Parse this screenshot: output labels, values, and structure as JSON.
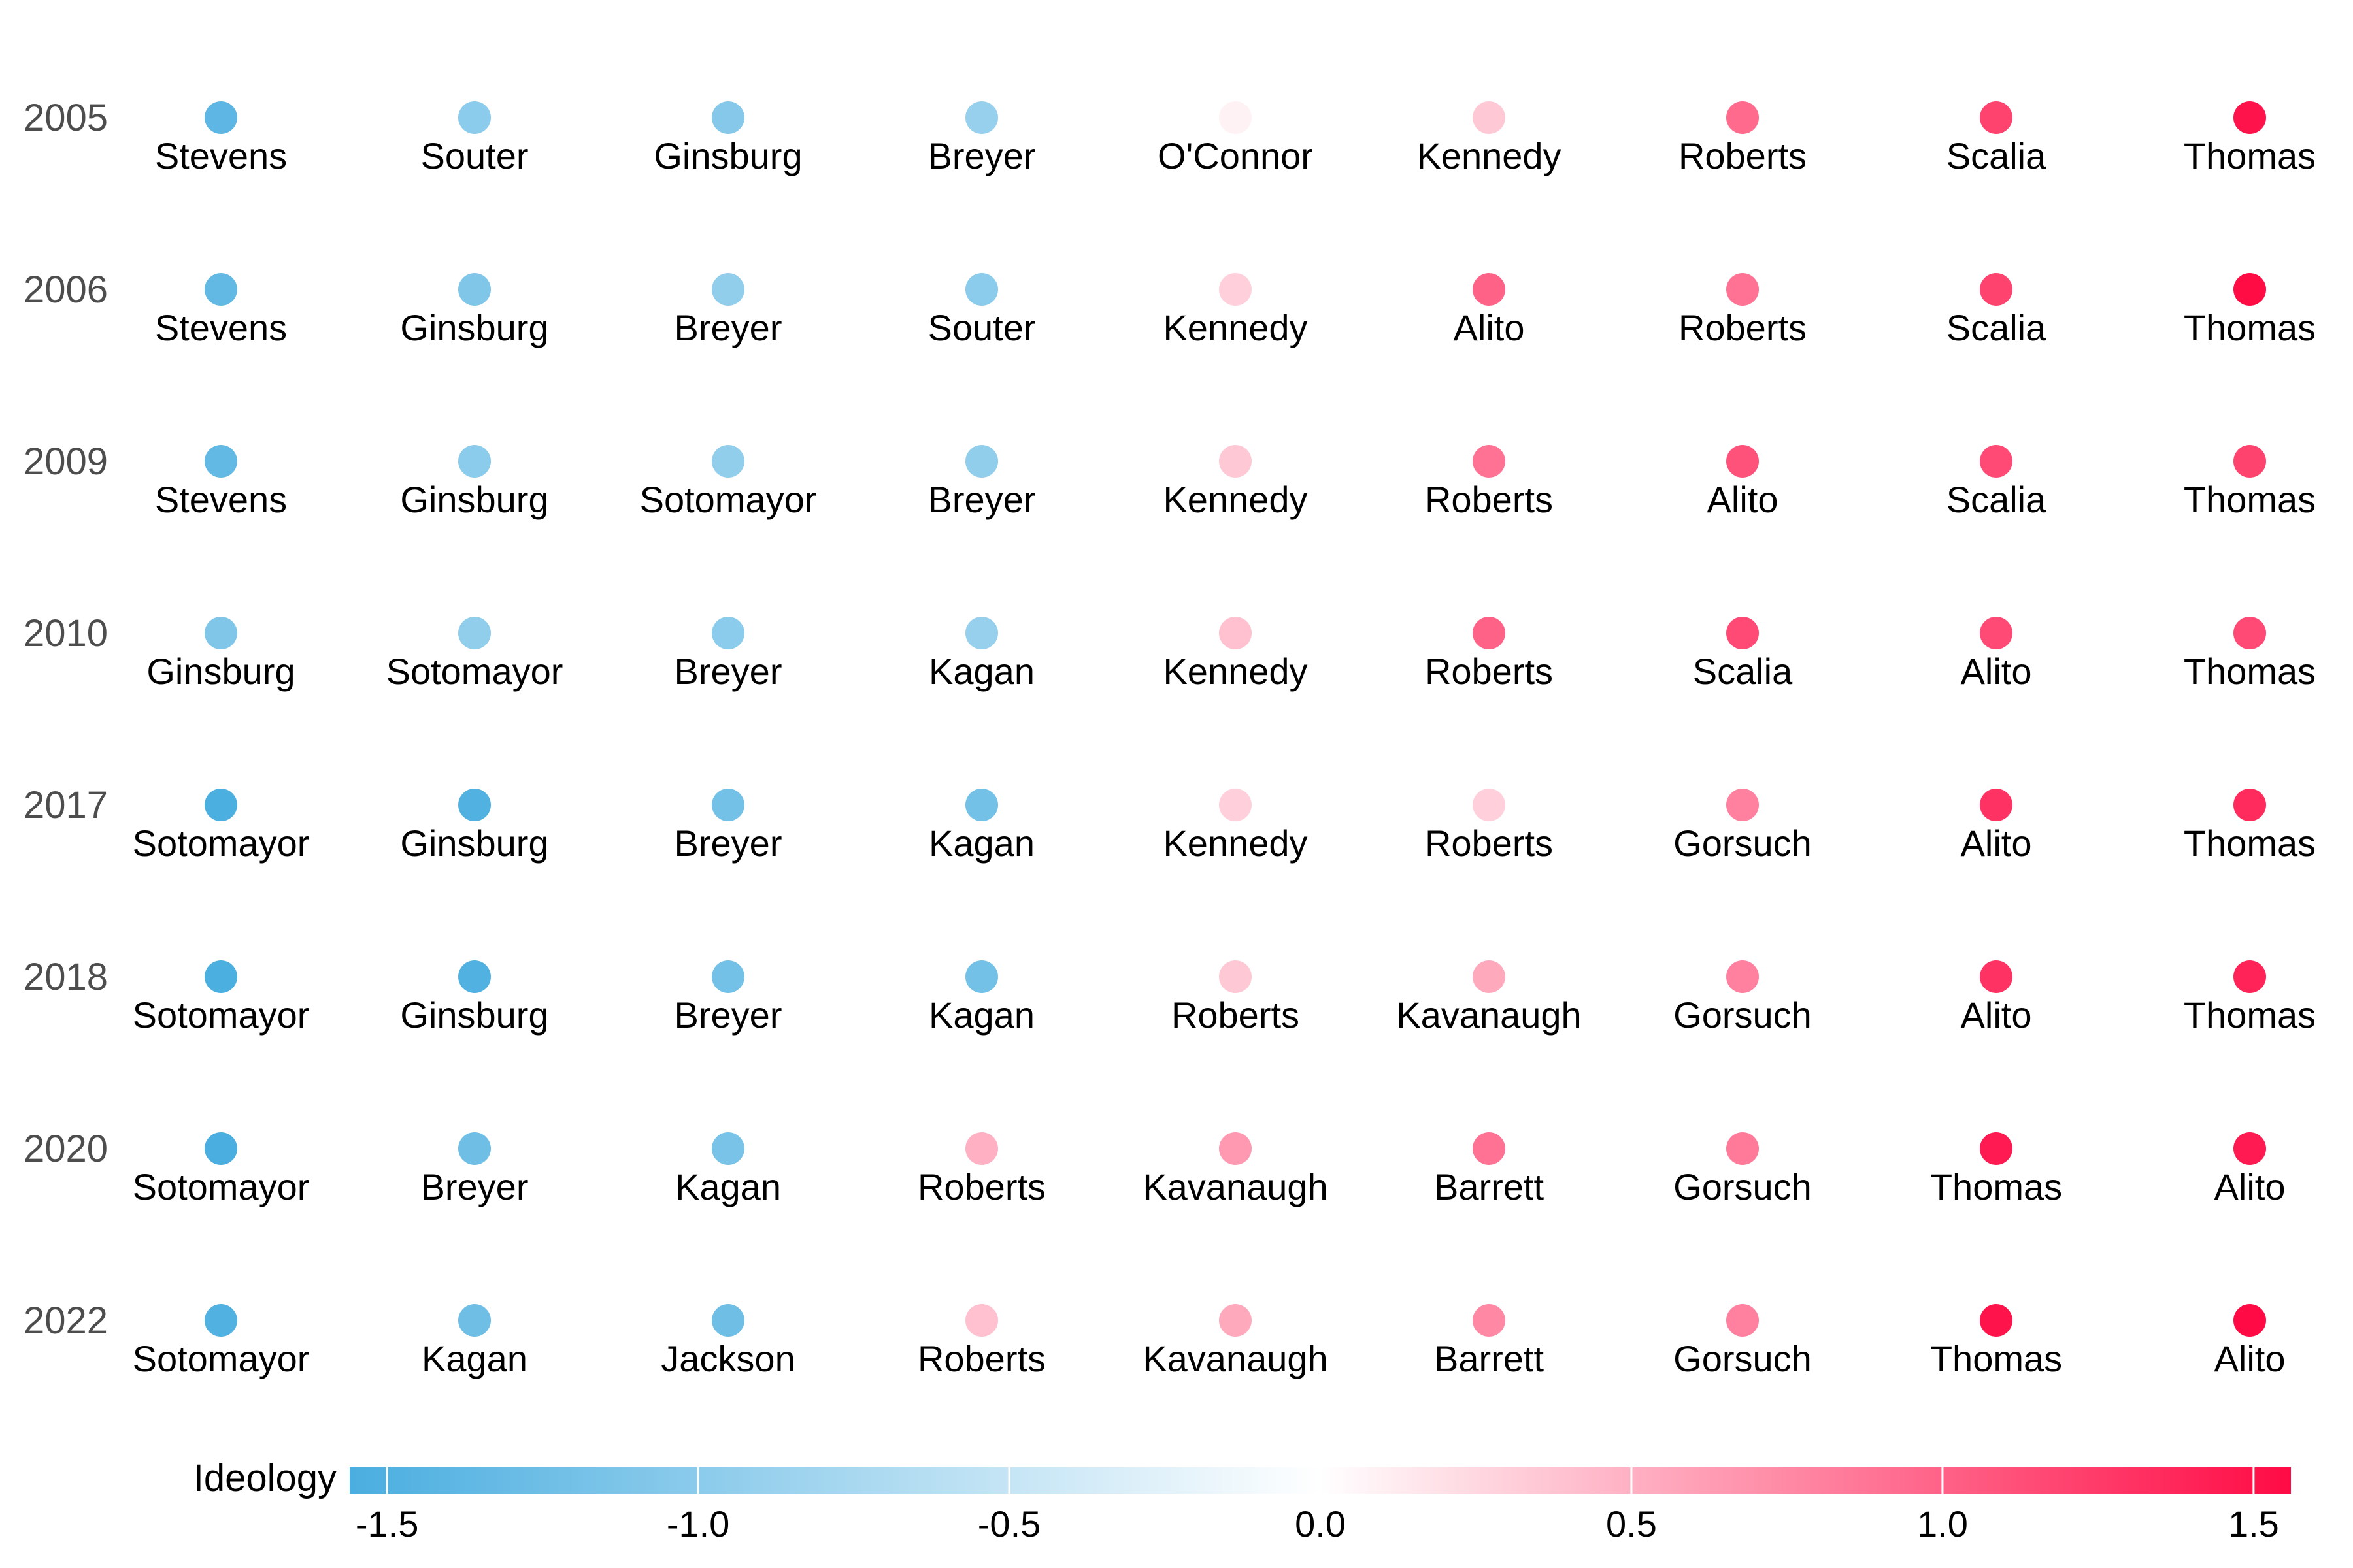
{
  "chart_data": {
    "type": "scatter",
    "title": "",
    "xlabel": "",
    "ylabel": "",
    "grid": false,
    "legend": {
      "title": "Ideology",
      "placement": "bottom",
      "range": [
        -1.56,
        1.56
      ],
      "ticks": [
        -1.5,
        -1.0,
        -0.5,
        0.0,
        0.5,
        1.0,
        1.5
      ],
      "tick_labels": [
        "-1.5",
        "-1.0",
        "-0.5",
        "0.0",
        "0.5",
        "1.0",
        "1.5"
      ],
      "colors": {
        "low": "#4aaee0",
        "mid": "#ffffff",
        "high": "#ff0a44"
      }
    },
    "rows": [
      {
        "year": "2005",
        "justices": [
          {
            "name": "Stevens",
            "ideology": -1.4
          },
          {
            "name": "Souter",
            "ideology": -1.0
          },
          {
            "name": "Ginsburg",
            "ideology": -1.05
          },
          {
            "name": "Breyer",
            "ideology": -0.9
          },
          {
            "name": "O'Connor",
            "ideology": 0.08
          },
          {
            "name": "Kennedy",
            "ideology": 0.35
          },
          {
            "name": "Roberts",
            "ideology": 0.95
          },
          {
            "name": "Scalia",
            "ideology": 1.2
          },
          {
            "name": "Thomas",
            "ideology": 1.5
          }
        ]
      },
      {
        "year": "2006",
        "justices": [
          {
            "name": "Stevens",
            "ideology": -1.35
          },
          {
            "name": "Ginsburg",
            "ideology": -1.1
          },
          {
            "name": "Breyer",
            "ideology": -0.95
          },
          {
            "name": "Souter",
            "ideology": -1.0
          },
          {
            "name": "Kennedy",
            "ideology": 0.3
          },
          {
            "name": "Alito",
            "ideology": 1.0
          },
          {
            "name": "Roberts",
            "ideology": 0.9
          },
          {
            "name": "Scalia",
            "ideology": 1.2
          },
          {
            "name": "Thomas",
            "ideology": 1.55
          }
        ]
      },
      {
        "year": "2009",
        "justices": [
          {
            "name": "Stevens",
            "ideology": -1.35
          },
          {
            "name": "Ginsburg",
            "ideology": -1.0
          },
          {
            "name": "Sotomayor",
            "ideology": -0.95
          },
          {
            "name": "Breyer",
            "ideology": -0.95
          },
          {
            "name": "Kennedy",
            "ideology": 0.35
          },
          {
            "name": "Roberts",
            "ideology": 0.9
          },
          {
            "name": "Alito",
            "ideology": 1.1
          },
          {
            "name": "Scalia",
            "ideology": 1.15
          },
          {
            "name": "Thomas",
            "ideology": 1.2
          }
        ]
      },
      {
        "year": "2010",
        "justices": [
          {
            "name": "Ginsburg",
            "ideology": -1.1
          },
          {
            "name": "Sotomayor",
            "ideology": -0.95
          },
          {
            "name": "Breyer",
            "ideology": -1.0
          },
          {
            "name": "Kagan",
            "ideology": -0.9
          },
          {
            "name": "Kennedy",
            "ideology": 0.4
          },
          {
            "name": "Roberts",
            "ideology": 1.0
          },
          {
            "name": "Scalia",
            "ideology": 1.15
          },
          {
            "name": "Alito",
            "ideology": 1.15
          },
          {
            "name": "Thomas",
            "ideology": 1.15
          }
        ]
      },
      {
        "year": "2017",
        "justices": [
          {
            "name": "Sotomayor",
            "ideology": -1.55
          },
          {
            "name": "Ginsburg",
            "ideology": -1.5
          },
          {
            "name": "Breyer",
            "ideology": -1.2
          },
          {
            "name": "Kagan",
            "ideology": -1.2
          },
          {
            "name": "Kennedy",
            "ideology": 0.3
          },
          {
            "name": "Roberts",
            "ideology": 0.3
          },
          {
            "name": "Gorsuch",
            "ideology": 0.8
          },
          {
            "name": "Alito",
            "ideology": 1.3
          },
          {
            "name": "Thomas",
            "ideology": 1.35
          }
        ]
      },
      {
        "year": "2018",
        "justices": [
          {
            "name": "Sotomayor",
            "ideology": -1.55
          },
          {
            "name": "Ginsburg",
            "ideology": -1.5
          },
          {
            "name": "Breyer",
            "ideology": -1.2
          },
          {
            "name": "Kagan",
            "ideology": -1.2
          },
          {
            "name": "Roberts",
            "ideology": 0.35
          },
          {
            "name": "Kavanaugh",
            "ideology": 0.55
          },
          {
            "name": "Gorsuch",
            "ideology": 0.8
          },
          {
            "name": "Alito",
            "ideology": 1.3
          },
          {
            "name": "Thomas",
            "ideology": 1.4
          }
        ]
      },
      {
        "year": "2020",
        "justices": [
          {
            "name": "Sotomayor",
            "ideology": -1.6
          },
          {
            "name": "Breyer",
            "ideology": -1.25
          },
          {
            "name": "Kagan",
            "ideology": -1.15
          },
          {
            "name": "Roberts",
            "ideology": 0.5
          },
          {
            "name": "Kavanaugh",
            "ideology": 0.65
          },
          {
            "name": "Barrett",
            "ideology": 0.9
          },
          {
            "name": "Gorsuch",
            "ideology": 0.85
          },
          {
            "name": "Thomas",
            "ideology": 1.45
          },
          {
            "name": "Alito",
            "ideology": 1.45
          }
        ]
      },
      {
        "year": "2022",
        "justices": [
          {
            "name": "Sotomayor",
            "ideology": -1.5
          },
          {
            "name": "Kagan",
            "ideology": -1.25
          },
          {
            "name": "Jackson",
            "ideology": -1.25
          },
          {
            "name": "Roberts",
            "ideology": 0.4
          },
          {
            "name": "Kavanaugh",
            "ideology": 0.55
          },
          {
            "name": "Barrett",
            "ideology": 0.75
          },
          {
            "name": "Gorsuch",
            "ideology": 0.8
          },
          {
            "name": "Thomas",
            "ideology": 1.5
          },
          {
            "name": "Alito",
            "ideology": 1.6
          }
        ]
      }
    ]
  }
}
